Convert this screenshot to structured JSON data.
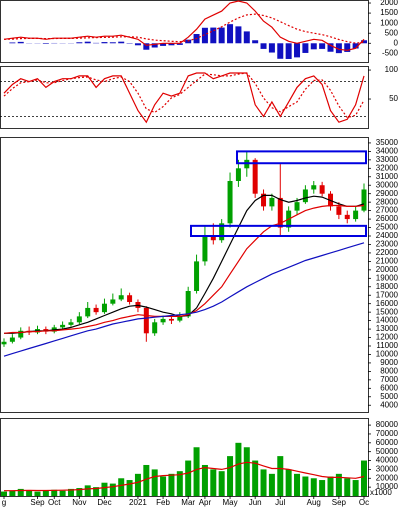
{
  "chart_data": [
    {
      "type": "macd",
      "ylim": [
        -930,
        2150
      ],
      "yticks": [
        2000,
        1500,
        1000,
        500,
        0,
        -500
      ],
      "series": [
        {
          "color": "#e00000",
          "dash": false,
          "values": [
            200,
            250,
            300,
            250,
            250,
            200,
            250,
            250,
            250,
            300,
            350,
            300,
            350,
            350,
            400,
            300,
            200,
            -100,
            -50,
            0,
            0,
            0,
            300,
            700,
            1200,
            1400,
            1600,
            2000,
            2100,
            2000,
            1600,
            1100,
            800,
            300,
            100,
            0,
            100,
            200,
            150,
            -100,
            -300,
            -350,
            -250,
            200
          ]
        },
        {
          "color": "#e00000",
          "dash": true,
          "values": [
            200,
            210,
            230,
            240,
            240,
            230,
            235,
            240,
            240,
            250,
            270,
            280,
            290,
            300,
            320,
            320,
            300,
            220,
            160,
            130,
            100,
            80,
            120,
            240,
            430,
            620,
            820,
            1050,
            1260,
            1410,
            1450,
            1380,
            1260,
            1070,
            880,
            700,
            580,
            500,
            430,
            320,
            190,
            80,
            10,
            50
          ]
        }
      ],
      "histogram": {
        "color": "#1010c0",
        "values": [
          0,
          40,
          70,
          10,
          10,
          -30,
          15,
          10,
          10,
          50,
          80,
          20,
          60,
          50,
          80,
          -20,
          -100,
          -320,
          -210,
          -130,
          -100,
          -80,
          180,
          460,
          770,
          780,
          780,
          950,
          840,
          590,
          150,
          -280,
          -460,
          -770,
          -780,
          -700,
          -480,
          -300,
          -280,
          -420,
          -490,
          -430,
          -260,
          150
        ]
      }
    },
    {
      "type": "line",
      "ylim": [
        0,
        107
      ],
      "yticks": [
        100,
        50
      ],
      "reference_lines": [
        80,
        20
      ],
      "series": [
        {
          "color": "#e00000",
          "dash": false,
          "values": [
            60,
            75,
            85,
            80,
            85,
            70,
            80,
            85,
            85,
            90,
            90,
            70,
            85,
            90,
            90,
            60,
            30,
            10,
            40,
            60,
            55,
            60,
            90,
            95,
            95,
            85,
            90,
            95,
            95,
            95,
            40,
            20,
            45,
            20,
            45,
            70,
            85,
            90,
            75,
            30,
            10,
            15,
            40,
            90
          ]
        },
        {
          "color": "#e00000",
          "dash": true,
          "values": [
            55,
            68,
            78,
            80,
            83,
            78,
            78,
            82,
            85,
            87,
            88,
            83,
            80,
            85,
            88,
            80,
            60,
            33,
            27,
            37,
            52,
            58,
            70,
            82,
            93,
            92,
            90,
            90,
            93,
            95,
            77,
            52,
            35,
            28,
            37,
            45,
            67,
            82,
            83,
            65,
            38,
            18,
            22,
            48
          ]
        }
      ]
    },
    {
      "type": "candlestick",
      "ylim": [
        3200,
        35700
      ],
      "yticks": [
        35000,
        34000,
        33000,
        32000,
        31000,
        30000,
        29000,
        28000,
        27000,
        26000,
        25000,
        24000,
        23000,
        22000,
        21000,
        20000,
        19000,
        18000,
        17000,
        16000,
        15000,
        14000,
        13000,
        12000,
        11000,
        10000,
        9000,
        8000,
        7000,
        6000,
        5000,
        4000
      ],
      "up_color": "#00a000",
      "down_color": "#e00000",
      "open": [
        11200,
        11500,
        12000,
        12800,
        12600,
        13000,
        12700,
        13200,
        13500,
        13800,
        14500,
        15500,
        15000,
        16000,
        16500,
        17000,
        16200,
        15500,
        12500,
        13800,
        14200,
        14000,
        14500,
        17500,
        21000,
        24000,
        23500,
        25500,
        30500,
        32000,
        33000,
        29000,
        27500,
        28500,
        25000,
        27000,
        28000,
        29500,
        30000,
        29000,
        27500,
        26500,
        26000,
        27000
      ],
      "high": [
        11900,
        12400,
        13200,
        13300,
        13400,
        13300,
        13500,
        13900,
        14200,
        15000,
        16200,
        15900,
        16600,
        17200,
        17800,
        17300,
        16500,
        15700,
        14200,
        14600,
        14500,
        15000,
        18000,
        21800,
        25200,
        25500,
        26000,
        31500,
        33000,
        34000,
        33200,
        29500,
        29000,
        32500,
        27500,
        28500,
        30000,
        30500,
        30400,
        29300,
        28000,
        27000,
        27500,
        30200
      ],
      "low": [
        10900,
        11300,
        11800,
        12300,
        12400,
        12400,
        12500,
        13000,
        13300,
        13600,
        14300,
        14700,
        14800,
        15800,
        16300,
        15900,
        15000,
        11500,
        12200,
        13500,
        13600,
        13800,
        14300,
        17200,
        20500,
        23000,
        23200,
        25000,
        29800,
        31000,
        28500,
        27000,
        27000,
        24000,
        24500,
        26500,
        27800,
        29000,
        28700,
        27000,
        26000,
        25500,
        25700,
        26800
      ],
      "close": [
        11500,
        12000,
        12800,
        12600,
        13000,
        12700,
        13200,
        13500,
        13800,
        14500,
        15500,
        15000,
        16000,
        16500,
        17000,
        16200,
        15500,
        12500,
        13800,
        14200,
        14000,
        14500,
        17500,
        21000,
        24000,
        23500,
        25500,
        30500,
        32000,
        33000,
        29000,
        27500,
        28500,
        25000,
        27000,
        28000,
        29500,
        30000,
        29000,
        27500,
        26500,
        26000,
        27000,
        29500
      ],
      "overlays": [
        {
          "color": "#000000",
          "values": [
            12500,
            12500,
            12600,
            12700,
            12800,
            12800,
            12900,
            13000,
            13200,
            13500,
            13800,
            14200,
            14600,
            15000,
            15400,
            15700,
            15800,
            15600,
            15300,
            15000,
            14800,
            14500,
            14600,
            15500,
            17200,
            19000,
            21000,
            23000,
            25000,
            27000,
            28200,
            28800,
            28800,
            28300,
            28000,
            28200,
            28500,
            28700,
            28600,
            28200,
            27800,
            27500,
            27500,
            27800
          ]
        },
        {
          "color": "#e00000",
          "values": [
            12500,
            12600,
            12600,
            12700,
            12700,
            12800,
            12800,
            12900,
            13000,
            13100,
            13300,
            13500,
            13800,
            14000,
            14300,
            14500,
            14700,
            14600,
            14500,
            14500,
            14500,
            14500,
            14700,
            15200,
            16000,
            17000,
            18000,
            19500,
            21000,
            22500,
            23500,
            24500,
            25200,
            25500,
            26000,
            26500,
            27000,
            27300,
            27500,
            27600,
            27600,
            27500,
            27500,
            27600
          ]
        },
        {
          "color": "#1010c0",
          "values": [
            9800,
            10100,
            10400,
            10700,
            11000,
            11300,
            11600,
            11900,
            12200,
            12500,
            12800,
            13000,
            13300,
            13600,
            13800,
            14000,
            14200,
            14300,
            14400,
            14500,
            14600,
            14700,
            14800,
            15000,
            15300,
            15700,
            16200,
            16800,
            17400,
            18000,
            18500,
            19000,
            19500,
            19900,
            20300,
            20700,
            21100,
            21400,
            21700,
            22000,
            22300,
            22600,
            22900,
            23200
          ]
        }
      ],
      "zones": [
        {
          "low": 32600,
          "high": 34000
        },
        {
          "low": 24000,
          "high": 25200
        }
      ],
      "zone_color": "#0000e0"
    },
    {
      "type": "bar",
      "ylim": [
        0,
        88000
      ],
      "yticks": [
        80000,
        70000,
        60000,
        50000,
        40000,
        30000,
        20000,
        10000
      ],
      "y_unit": "x1000",
      "categories": [
        "g",
        null,
        null,
        null,
        "Sep",
        null,
        "Oct",
        null,
        null,
        "Nov",
        null,
        null,
        "Dec",
        null,
        null,
        null,
        "2021",
        null,
        null,
        "Feb",
        null,
        null,
        "Mar",
        null,
        "Apr",
        null,
        null,
        "May",
        null,
        null,
        "Jun",
        null,
        null,
        "Jul",
        null,
        null,
        null,
        "Aug",
        null,
        null,
        "Sep",
        null,
        null,
        "Oc"
      ],
      "color": "#00a000",
      "values": [
        5000,
        6000,
        8000,
        6000,
        5000,
        6000,
        7000,
        6000,
        8000,
        9000,
        12000,
        10000,
        15000,
        14000,
        20000,
        18000,
        25000,
        35000,
        30000,
        22000,
        25000,
        28000,
        40000,
        55000,
        35000,
        30000,
        28000,
        45000,
        60000,
        55000,
        40000,
        30000,
        25000,
        45000,
        30000,
        25000,
        22000,
        20000,
        18000,
        22000,
        25000,
        20000,
        18000,
        40000
      ],
      "line": {
        "color": "#e00000",
        "values": [
          6000,
          6000,
          6200,
          6300,
          6200,
          6200,
          6400,
          6500,
          6800,
          7200,
          8000,
          8500,
          9500,
          10500,
          12000,
          13500,
          15500,
          19000,
          22000,
          23000,
          23500,
          24000,
          26000,
          30000,
          32000,
          31000,
          30000,
          32000,
          36000,
          38000,
          37000,
          34000,
          31000,
          31000,
          30000,
          28000,
          26000,
          24000,
          22000,
          21000,
          21000,
          20500,
          20000,
          22000
        ]
      }
    }
  ]
}
